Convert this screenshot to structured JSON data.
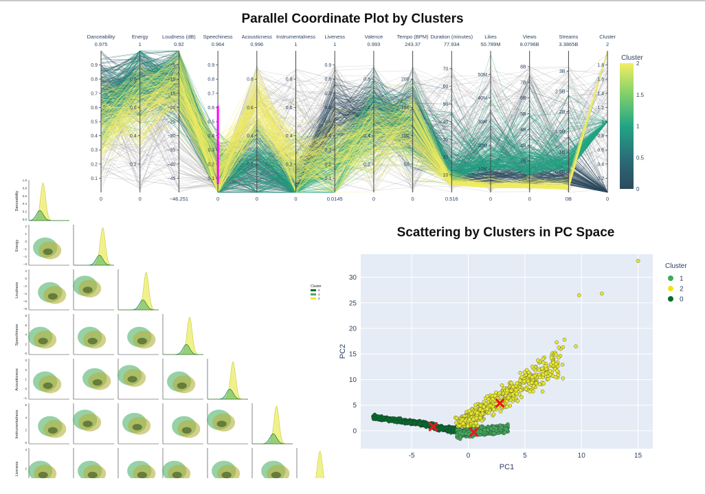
{
  "parallel_title": "Parallel Coordinate Plot by Clusters",
  "scatter_title": "Scattering by Clusters in PC Space",
  "colors": {
    "cluster0": "#006d2c",
    "cluster1": "#41ab5d",
    "cluster2": "#e6e62e",
    "centroid": "#e8191e",
    "brush": "#ff00ff",
    "viridis_low": "#2c4a5e",
    "viridis_mid": "#22a584",
    "viridis_high": "#f2ee64",
    "plot_bg": "#e5ecf6"
  },
  "chart_data": [
    {
      "type": "parallel_coordinates",
      "title": "Parallel Coordinate Plot by Clusters",
      "colorbar": {
        "title": "Cluster",
        "range": [
          0,
          2
        ],
        "ticks": [
          "0",
          "0.5",
          "1",
          "1.5",
          "2"
        ]
      },
      "axes": [
        {
          "name": "Danceability",
          "max": "0.975",
          "min": "0",
          "ticks": [
            "0.1",
            "0.2",
            "0.3",
            "0.4",
            "0.5",
            "0.6",
            "0.7",
            "0.8",
            "0.9"
          ]
        },
        {
          "name": "Energy",
          "max": "1",
          "min": "0",
          "ticks": [
            "0.2",
            "0.4",
            "0.6",
            "0.8"
          ]
        },
        {
          "name": "Loudness (dB)",
          "max": "0.92",
          "min": "−46.251",
          "ticks": [
            "−45",
            "−40",
            "−35",
            "−30",
            "−25",
            "−20",
            "−15",
            "−10",
            "−5"
          ]
        },
        {
          "name": "Speechiness",
          "max": "0.964",
          "min": "0",
          "ticks": [
            "0.1",
            "0.2",
            "0.3",
            "0.4",
            "0.5",
            "0.6",
            "0.7",
            "0.8",
            "0.9"
          ]
        },
        {
          "name": "Acousticness",
          "max": "0.996",
          "min": "0",
          "ticks": [
            "0.2",
            "0.4",
            "0.6",
            "0.8"
          ]
        },
        {
          "name": "Instrumentalness",
          "max": "1",
          "min": "0",
          "ticks": [
            "0.2",
            "0.4",
            "0.6",
            "0.8"
          ]
        },
        {
          "name": "Liveness",
          "max": "1",
          "min": "0.0145",
          "ticks": [
            "0.1",
            "0.2",
            "0.3",
            "0.4",
            "0.5",
            "0.6",
            "0.7",
            "0.8",
            "0.9"
          ]
        },
        {
          "name": "Valence",
          "max": "0.993",
          "min": "0",
          "ticks": [
            "0.2",
            "0.4",
            "0.6",
            "0.8"
          ]
        },
        {
          "name": "Tempo (BPM)",
          "max": "243.37",
          "min": "0",
          "ticks": [
            "50",
            "100",
            "150",
            "200"
          ]
        },
        {
          "name": "Duration (minutes)",
          "max": "77.934",
          "min": "0.516",
          "ticks": [
            "10",
            "20",
            "30",
            "40",
            "50",
            "60",
            "70"
          ]
        },
        {
          "name": "Likes",
          "max": "50.789M",
          "min": "0",
          "ticks": [
            "10M",
            "20M",
            "30M",
            "40M",
            "50M"
          ]
        },
        {
          "name": "Views",
          "max": "8.0796B",
          "min": "0",
          "ticks": [
            "1B",
            "2B",
            "3B",
            "4B",
            "5B",
            "6B",
            "7B",
            "8B"
          ]
        },
        {
          "name": "Streams",
          "max": "3.3865B",
          "min": "0B",
          "ticks": [
            "0.5B",
            "1B",
            "1.5B",
            "2B",
            "2.5B",
            "3B"
          ]
        },
        {
          "name": "Cluster",
          "max": "2",
          "min": "0",
          "ticks": [
            "0.2",
            "0.4",
            "0.6",
            "0.8",
            "1",
            "1.2",
            "1.4",
            "1.6",
            "1.8"
          ]
        }
      ]
    },
    {
      "type": "pairplot_kde",
      "variables": [
        "Danceability",
        "Energy",
        "Loudness",
        "Speechiness",
        "Acousticness",
        "Instrumentalness",
        "Liveness"
      ],
      "legend": {
        "title": "Cluster",
        "entries": [
          "0",
          "1",
          "2"
        ]
      },
      "diag_ticks": [
        "1.0",
        "0.8",
        "0.6",
        "0.4",
        "0.2",
        "0.0"
      ],
      "y_ticks": {
        "Energy": [
          "2",
          "1",
          "0",
          "−1",
          "−2",
          "−3"
        ],
        "Loudness": [
          "2",
          "0",
          "−2",
          "−4",
          "−6",
          "−8"
        ],
        "Speechiness": [
          "8",
          "6",
          "4",
          "2",
          "0"
        ],
        "Acousticness": [
          "3",
          "2",
          "1",
          "0",
          "−1"
        ],
        "Instrumentalness": [
          "6",
          "4",
          "2",
          "0"
        ],
        "Liveness": [
          "4",
          "2",
          "0"
        ]
      }
    },
    {
      "type": "scatter",
      "title": "Scattering by Clusters in PC Space",
      "xlabel": "PC1",
      "ylabel": "PC2",
      "xlim": [
        -9.5,
        16.3
      ],
      "ylim": [
        -3.5,
        34.5
      ],
      "xticks": [
        -5,
        0,
        5,
        10,
        15
      ],
      "yticks": [
        0,
        5,
        10,
        15,
        20,
        25,
        30
      ],
      "legend": {
        "title": "Cluster",
        "entries": [
          "1",
          "2",
          "0"
        ],
        "placement": "top-right outside"
      },
      "series": [
        {
          "name": "0",
          "centroid": [
            -3.1,
            0.8
          ]
        },
        {
          "name": "1",
          "centroid": [
            0.5,
            -0.3
          ]
        },
        {
          "name": "2",
          "centroid": [
            2.8,
            5.4
          ]
        }
      ],
      "outliers_cluster2": [
        [
          15.0,
          33.2
        ],
        [
          9.8,
          26.5
        ],
        [
          11.8,
          26.8
        ],
        [
          8.5,
          17.8
        ],
        [
          9.5,
          16.5
        ]
      ]
    }
  ]
}
